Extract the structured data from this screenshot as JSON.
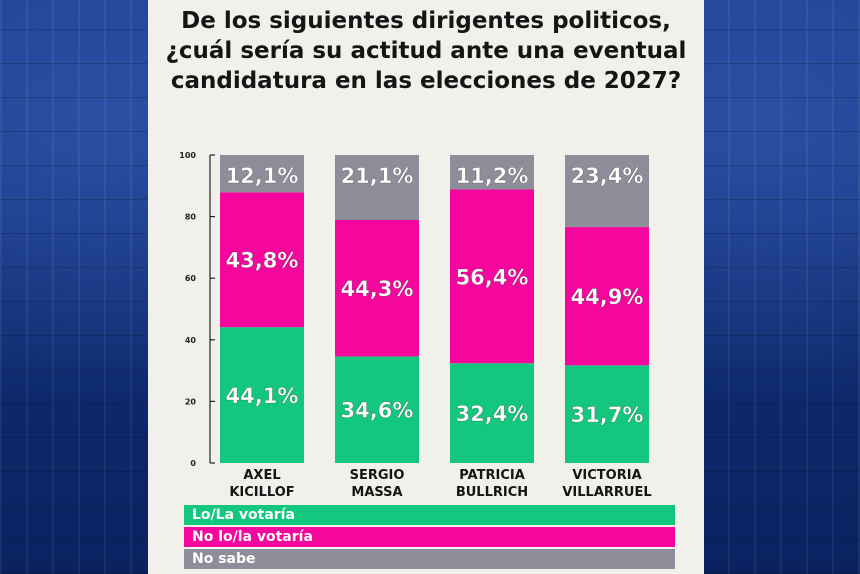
{
  "title_lines": [
    "De los siguientes dirigentes politicos,",
    "¿cuál sería su actitud ante una eventual",
    "candidatura en las elecciones de 2027?"
  ],
  "colors": {
    "votaria": "#13c87e",
    "no_votaria": "#f5069c",
    "no_sabe": "#8e8e9a"
  },
  "chart_data": {
    "type": "bar",
    "stacked": true,
    "title": "De los siguientes dirigentes politicos, ¿cuál sería su actitud ante una eventual candidatura en las elecciones de 2027?",
    "ylim": [
      0,
      100
    ],
    "yticks": [
      "0",
      "20",
      "40",
      "60",
      "80",
      "100"
    ],
    "categories": [
      [
        "AXEL",
        "KICILLOF"
      ],
      [
        "SERGIO",
        "MASSA"
      ],
      [
        "PATRICIA",
        "BULLRICH"
      ],
      [
        "VICTORIA",
        "VILLARRUEL"
      ]
    ],
    "series": [
      {
        "name": "Lo/La votaría",
        "values": [
          44.1,
          34.6,
          32.4,
          31.7
        ],
        "labels": [
          "44,1%",
          "34,6%",
          "32,4%",
          "31,7%"
        ]
      },
      {
        "name": "No lo/la votaría",
        "values": [
          43.8,
          44.3,
          56.4,
          44.9
        ],
        "labels": [
          "43,8%",
          "44,3%",
          "56,4%",
          "44,9%"
        ]
      },
      {
        "name": "No sabe",
        "values": [
          12.1,
          21.1,
          11.2,
          23.4
        ],
        "labels": [
          "12,1%",
          "21,1%",
          "11,2%",
          "23,4%"
        ]
      }
    ],
    "legend": "bottom"
  }
}
